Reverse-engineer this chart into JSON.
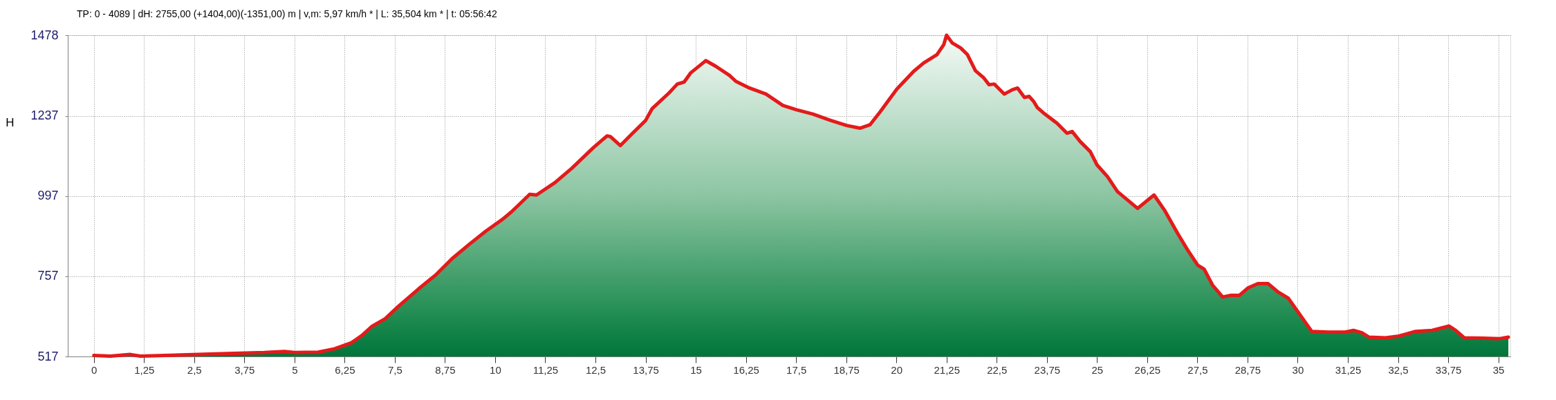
{
  "chart_data": {
    "type": "area",
    "title": "TP: 0 - 4089 | dH: 2755,00  (+1404,00)(-1351,00) m | v,m: 5,97 km/h * | L: 35,504 km * | t: 05:56:42",
    "ylabel": "H",
    "x": [
      0,
      0.41,
      0.91,
      1.16,
      2.33,
      3.33,
      4.25,
      4.75,
      5.0,
      5.59,
      6.0,
      6.42,
      6.68,
      6.93,
      7.26,
      7.59,
      8.1,
      8.51,
      8.93,
      9.35,
      9.77,
      10.18,
      10.41,
      10.86,
      11.03,
      11.49,
      11.91,
      12.45,
      12.79,
      12.87,
      13.12,
      13.41,
      13.75,
      13.91,
      14.33,
      14.54,
      14.71,
      14.87,
      15.25,
      15.5,
      15.84,
      16.0,
      16.34,
      16.75,
      17.17,
      17.51,
      17.92,
      18.34,
      18.76,
      19.09,
      19.34,
      19.59,
      20.01,
      20.43,
      20.68,
      21.01,
      21.18,
      21.25,
      21.39,
      21.6,
      21.77,
      21.97,
      22.18,
      22.31,
      22.44,
      22.69,
      22.89,
      23.02,
      23.19,
      23.31,
      23.42,
      23.51,
      23.67,
      24.0,
      24.25,
      24.38,
      24.58,
      24.83,
      25.0,
      25.26,
      25.51,
      26.01,
      26.42,
      26.68,
      27.01,
      27.26,
      27.51,
      27.67,
      27.88,
      28.13,
      28.34,
      28.55,
      28.76,
      29.01,
      29.26,
      29.51,
      29.76,
      30.01,
      30.35,
      30.76,
      31.18,
      31.39,
      31.6,
      31.77,
      32.19,
      32.52,
      32.94,
      33.35,
      33.77,
      33.94,
      34.15,
      34.61,
      35.02,
      35.25
    ],
    "series": [
      {
        "color": "#e31b1b",
        "values": [
          520,
          518,
          523,
          518,
          522,
          526,
          529,
          532,
          529,
          530,
          540,
          558,
          580,
          607,
          630,
          667,
          720,
          760,
          810,
          852,
          892,
          927,
          950,
          1002,
          1000,
          1037,
          1080,
          1142,
          1177,
          1175,
          1148,
          1183,
          1223,
          1258,
          1305,
          1332,
          1338,
          1365,
          1402,
          1385,
          1358,
          1340,
          1320,
          1302,
          1268,
          1255,
          1242,
          1224,
          1208,
          1200,
          1210,
          1248,
          1317,
          1370,
          1395,
          1420,
          1450,
          1478,
          1455,
          1440,
          1420,
          1372,
          1350,
          1330,
          1332,
          1302,
          1315,
          1320,
          1292,
          1295,
          1280,
          1262,
          1245,
          1215,
          1185,
          1190,
          1160,
          1130,
          1090,
          1055,
          1010,
          960,
          1000,
          955,
          885,
          835,
          790,
          778,
          730,
          695,
          700,
          700,
          722,
          735,
          735,
          710,
          692,
          650,
          592,
          590,
          590,
          595,
          588,
          575,
          573,
          578,
          592,
          595,
          608,
          595,
          573,
          572,
          570,
          575
        ]
      }
    ],
    "xlim": [
      -0.65,
      35.3
    ],
    "xticks": [
      0,
      {
        "value": 1.25,
        "label": "1,25"
      },
      {
        "value": 2.5,
        "label": "2,5"
      },
      {
        "value": 3.75,
        "label": "3,75"
      },
      5,
      {
        "value": 6.25,
        "label": "6,25"
      },
      {
        "value": 7.5,
        "label": "7,5"
      },
      {
        "value": 8.75,
        "label": "8,75"
      },
      10,
      {
        "value": 11.25,
        "label": "11,25"
      },
      {
        "value": 12.5,
        "label": "12,5"
      },
      {
        "value": 13.75,
        "label": "13,75"
      },
      15,
      {
        "value": 16.25,
        "label": "16,25"
      },
      {
        "value": 17.5,
        "label": "17,5"
      },
      {
        "value": 18.75,
        "label": "18,75"
      },
      20,
      {
        "value": 21.25,
        "label": "21,25"
      },
      {
        "value": 22.5,
        "label": "22,5"
      },
      {
        "value": 23.75,
        "label": "23,75"
      },
      25,
      {
        "value": 26.25,
        "label": "26,25"
      },
      {
        "value": 27.5,
        "label": "27,5"
      },
      {
        "value": 28.75,
        "label": "28,75"
      },
      30,
      {
        "value": 31.25,
        "label": "31,25"
      },
      {
        "value": 32.5,
        "label": "32,5"
      },
      {
        "value": 33.75,
        "label": "33,75"
      },
      35
    ],
    "ylim": [
      517,
      1478
    ],
    "yticks": [
      517,
      757,
      997,
      1237,
      1478
    ],
    "grid": true
  }
}
